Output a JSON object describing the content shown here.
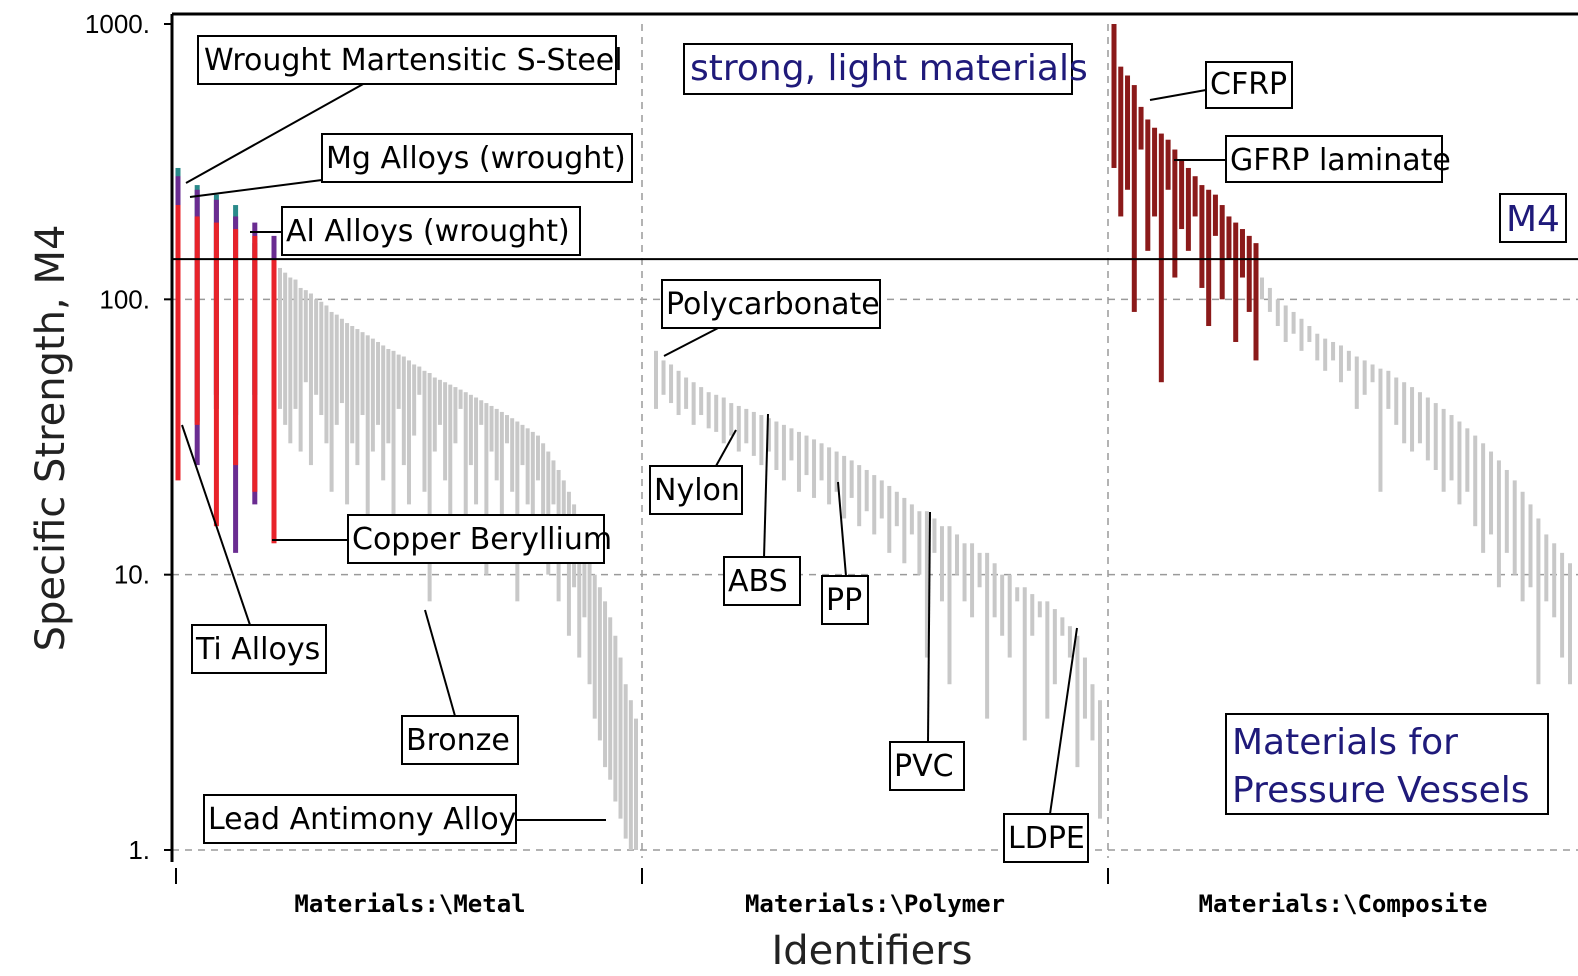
{
  "chart_data": {
    "type": "bar",
    "scale": "log",
    "ylim": [
      1,
      1000
    ],
    "grid": true,
    "ylabel": "Specific Strength, M4",
    "xlabel": "Identifiers",
    "y_ticks": [
      "1000.",
      "100.",
      "10.",
      "1."
    ],
    "y_tick_values": [
      1000,
      100,
      10,
      1
    ],
    "categories": [
      "Materials:\\Metal",
      "Materials:\\Polymer",
      "Materials:\\Composite"
    ],
    "threshold": {
      "label": "M4",
      "value": 140
    },
    "highlight_colors": {
      "steel": "#6a2c91",
      "mg": "#2a8a8a",
      "al": "#e8232a",
      "composite": "#8b1a1a",
      "other": "#c8c8c8"
    },
    "region_labels": [
      "strong, light materials",
      "Materials for",
      "Pressure Vessels"
    ],
    "annotations": [
      {
        "text": "Wrought Martensitic S-Steel",
        "category": "Materials:\\Metal",
        "value": 280
      },
      {
        "text": "Mg Alloys (wrought)",
        "category": "Materials:\\Metal",
        "value": 240
      },
      {
        "text": "Al Alloys (wrought)",
        "category": "Materials:\\Metal",
        "value": 180
      },
      {
        "text": "Copper Beryllium",
        "category": "Materials:\\Metal",
        "value": 13
      },
      {
        "text": "Ti Alloys",
        "category": "Materials:\\Metal",
        "value": 30
      },
      {
        "text": "Bronze",
        "category": "Materials:\\Metal",
        "value": 8
      },
      {
        "text": "Lead Antimony Alloy",
        "category": "Materials:\\Metal",
        "value": 1.2
      },
      {
        "text": "Polycarbonate",
        "category": "Materials:\\Polymer",
        "value": 65
      },
      {
        "text": "Nylon",
        "category": "Materials:\\Polymer",
        "value": 35
      },
      {
        "text": "ABS",
        "category": "Materials:\\Polymer",
        "value": 38
      },
      {
        "text": "PP",
        "category": "Materials:\\Polymer",
        "value": 25
      },
      {
        "text": "PVC",
        "category": "Materials:\\Polymer",
        "value": 17
      },
      {
        "text": "LDPE",
        "category": "Materials:\\Polymer",
        "value": 6.5
      },
      {
        "text": "CFRP",
        "category": "Materials:\\Composite",
        "value": 500
      },
      {
        "text": "GFRP laminate",
        "category": "Materials:\\Composite",
        "value": 320
      }
    ],
    "series": [
      {
        "group": "Metal",
        "highlight": "steel",
        "values": [
          [
            280,
            60
          ],
          [
            250,
            25
          ],
          [
            230,
            45
          ],
          [
            200,
            12
          ],
          [
            190,
            18
          ],
          [
            170,
            14
          ]
        ]
      },
      {
        "group": "Metal",
        "highlight": "mg",
        "values": [
          [
            300,
            32
          ],
          [
            260,
            36
          ],
          [
            240,
            40
          ],
          [
            220,
            38
          ],
          [
            160,
            45
          ],
          [
            150,
            42
          ]
        ]
      },
      {
        "group": "Metal",
        "highlight": "al",
        "values": [
          [
            220,
            22
          ],
          [
            200,
            35
          ],
          [
            190,
            15
          ],
          [
            180,
            25
          ],
          [
            170,
            20
          ],
          [
            140,
            13
          ]
        ]
      },
      {
        "group": "Metal",
        "highlight": "other",
        "values": [
          [
            130,
            40
          ],
          [
            125,
            35
          ],
          [
            120,
            30
          ],
          [
            118,
            40
          ],
          [
            110,
            28
          ],
          [
            108,
            50
          ],
          [
            105,
            25
          ],
          [
            100,
            45
          ],
          [
            98,
            38
          ],
          [
            95,
            30
          ],
          [
            90,
            20
          ],
          [
            88,
            35
          ],
          [
            85,
            42
          ],
          [
            82,
            18
          ],
          [
            80,
            30
          ],
          [
            78,
            25
          ],
          [
            76,
            38
          ],
          [
            74,
            15
          ],
          [
            72,
            28
          ],
          [
            70,
            35
          ],
          [
            68,
            22
          ],
          [
            66,
            30
          ],
          [
            65,
            12
          ],
          [
            63,
            40
          ],
          [
            62,
            25
          ],
          [
            60,
            18
          ],
          [
            58,
            32
          ],
          [
            57,
            45
          ],
          [
            55,
            20
          ],
          [
            54,
            8
          ],
          [
            52,
            28
          ],
          [
            51,
            35
          ],
          [
            50,
            22
          ],
          [
            49,
            15
          ],
          [
            48,
            30
          ],
          [
            47,
            40
          ],
          [
            46,
            12
          ],
          [
            45,
            25
          ],
          [
            44,
            18
          ],
          [
            43,
            35
          ],
          [
            42,
            10
          ],
          [
            41,
            28
          ],
          [
            40,
            22
          ],
          [
            39,
            15
          ],
          [
            38,
            30
          ],
          [
            37,
            20
          ],
          [
            36,
            8
          ],
          [
            35,
            25
          ],
          [
            34,
            18
          ],
          [
            33,
            12
          ],
          [
            32,
            22
          ],
          [
            30,
            15
          ],
          [
            28,
            10
          ],
          [
            26,
            18
          ],
          [
            24,
            8
          ],
          [
            22,
            12
          ],
          [
            20,
            6
          ],
          [
            18,
            9
          ],
          [
            16,
            5
          ],
          [
            14,
            7
          ],
          [
            12,
            4
          ],
          [
            10,
            3
          ],
          [
            9,
            2.5
          ],
          [
            8,
            2
          ],
          [
            7,
            1.8
          ],
          [
            6,
            1.5
          ],
          [
            5,
            1.3
          ],
          [
            4,
            1.1
          ],
          [
            3.5,
            1
          ],
          [
            3,
            1
          ]
        ]
      },
      {
        "group": "Polymer",
        "highlight": "other",
        "values": [
          [
            65,
            40
          ],
          [
            60,
            45
          ],
          [
            58,
            42
          ],
          [
            55,
            38
          ],
          [
            52,
            40
          ],
          [
            50,
            35
          ],
          [
            48,
            38
          ],
          [
            46,
            34
          ],
          [
            45,
            33
          ],
          [
            44,
            30
          ],
          [
            42,
            32
          ],
          [
            41,
            28
          ],
          [
            40,
            30
          ],
          [
            39,
            27
          ],
          [
            38,
            25
          ],
          [
            37,
            28
          ],
          [
            36,
            24
          ],
          [
            35,
            22
          ],
          [
            34,
            26
          ],
          [
            33,
            20
          ],
          [
            32,
            23
          ],
          [
            31,
            19
          ],
          [
            30,
            22
          ],
          [
            29,
            18
          ],
          [
            28,
            20
          ],
          [
            27,
            16
          ],
          [
            26,
            19
          ],
          [
            25,
            15
          ],
          [
            24,
            17
          ],
          [
            23,
            14
          ],
          [
            22,
            16
          ],
          [
            21,
            12
          ],
          [
            20,
            15
          ],
          [
            19,
            11
          ],
          [
            18,
            14
          ],
          [
            17,
            10
          ],
          [
            17,
            5
          ],
          [
            16,
            12
          ],
          [
            15,
            8
          ],
          [
            15,
            4
          ],
          [
            14,
            10
          ],
          [
            13,
            8
          ],
          [
            13,
            7
          ],
          [
            12,
            9
          ],
          [
            12,
            3
          ],
          [
            11,
            7
          ],
          [
            10,
            6
          ],
          [
            10,
            5
          ],
          [
            9,
            8
          ],
          [
            9,
            2.5
          ],
          [
            8.5,
            6
          ],
          [
            8,
            7
          ],
          [
            8,
            3
          ],
          [
            7.5,
            4
          ],
          [
            7,
            6
          ],
          [
            6.5,
            5
          ],
          [
            6,
            2
          ],
          [
            5,
            3
          ],
          [
            4,
            2.5
          ],
          [
            3.5,
            1.3
          ]
        ]
      },
      {
        "group": "Composite",
        "highlight": "composite",
        "values": [
          [
            1000,
            300
          ],
          [
            700,
            200
          ],
          [
            650,
            250
          ],
          [
            600,
            90
          ],
          [
            500,
            350
          ],
          [
            450,
            150
          ],
          [
            420,
            200
          ],
          [
            400,
            50
          ],
          [
            380,
            250
          ],
          [
            350,
            120
          ],
          [
            320,
            180
          ],
          [
            300,
            150
          ],
          [
            280,
            200
          ],
          [
            260,
            110
          ],
          [
            250,
            80
          ],
          [
            240,
            170
          ],
          [
            220,
            100
          ],
          [
            200,
            140
          ],
          [
            190,
            70
          ],
          [
            180,
            120
          ],
          [
            170,
            90
          ],
          [
            160,
            60
          ]
        ]
      },
      {
        "group": "Composite",
        "highlight": "other",
        "values": [
          [
            120,
            100
          ],
          [
            110,
            90
          ],
          [
            100,
            80
          ],
          [
            95,
            70
          ],
          [
            90,
            75
          ],
          [
            85,
            65
          ],
          [
            80,
            70
          ],
          [
            75,
            60
          ],
          [
            72,
            55
          ],
          [
            70,
            60
          ],
          [
            68,
            50
          ],
          [
            65,
            55
          ],
          [
            62,
            40
          ],
          [
            60,
            45
          ],
          [
            58,
            50
          ],
          [
            56,
            20
          ],
          [
            55,
            40
          ],
          [
            52,
            35
          ],
          [
            50,
            30
          ],
          [
            48,
            28
          ],
          [
            46,
            30
          ],
          [
            44,
            26
          ],
          [
            42,
            24
          ],
          [
            40,
            20
          ],
          [
            38,
            22
          ],
          [
            36,
            18
          ],
          [
            34,
            20
          ],
          [
            32,
            15
          ],
          [
            30,
            12
          ],
          [
            28,
            14
          ],
          [
            26,
            9
          ],
          [
            24,
            12
          ],
          [
            22,
            10
          ],
          [
            20,
            8
          ],
          [
            18,
            9
          ],
          [
            16,
            4
          ],
          [
            14,
            8
          ],
          [
            13,
            7
          ],
          [
            12,
            5
          ],
          [
            11,
            4
          ]
        ]
      }
    ]
  }
}
